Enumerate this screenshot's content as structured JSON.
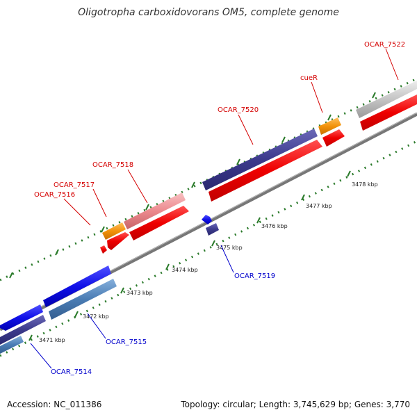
{
  "title": "Oligotropha carboxidovorans OM5, complete genome",
  "footer": {
    "accession": "Accession: NC_011386",
    "summary": "Topology: circular; Length: 3,745,629 bp; Genes: 3,770"
  },
  "colors": {
    "forward_label": "#d40000",
    "reverse_label": "#0000cc",
    "tick": "#2a7a2a",
    "backbone": "#777777",
    "cds_red": "#ee0000",
    "gene_navy": "#3c3a8c",
    "gene_blue": "#1010e8",
    "gene_steel": "#4a7cb4",
    "gene_orange": "#f2920a",
    "gene_pink": "#ec8a8e",
    "gene_grey": "#c4c4c4"
  },
  "scale": {
    "ticks": [
      {
        "label": "3471 kbp"
      },
      {
        "label": "3472 kbp"
      },
      {
        "label": "3473 kbp"
      },
      {
        "label": "3474 kbp"
      },
      {
        "label": "3475 kbp"
      },
      {
        "label": "3476 kbp"
      },
      {
        "label": "3477 kbp"
      },
      {
        "label": "3478 kbp"
      }
    ]
  },
  "labels": {
    "forward": [
      {
        "name": "OCAR_7516"
      },
      {
        "name": "OCAR_7517"
      },
      {
        "name": "OCAR_7518"
      },
      {
        "name": "OCAR_7520"
      },
      {
        "name": "cueR"
      },
      {
        "name": "OCAR_7522"
      }
    ],
    "reverse": [
      {
        "name": "OCAR_7514"
      },
      {
        "name": "OCAR_7515"
      },
      {
        "name": "OCAR_7519"
      }
    ]
  }
}
